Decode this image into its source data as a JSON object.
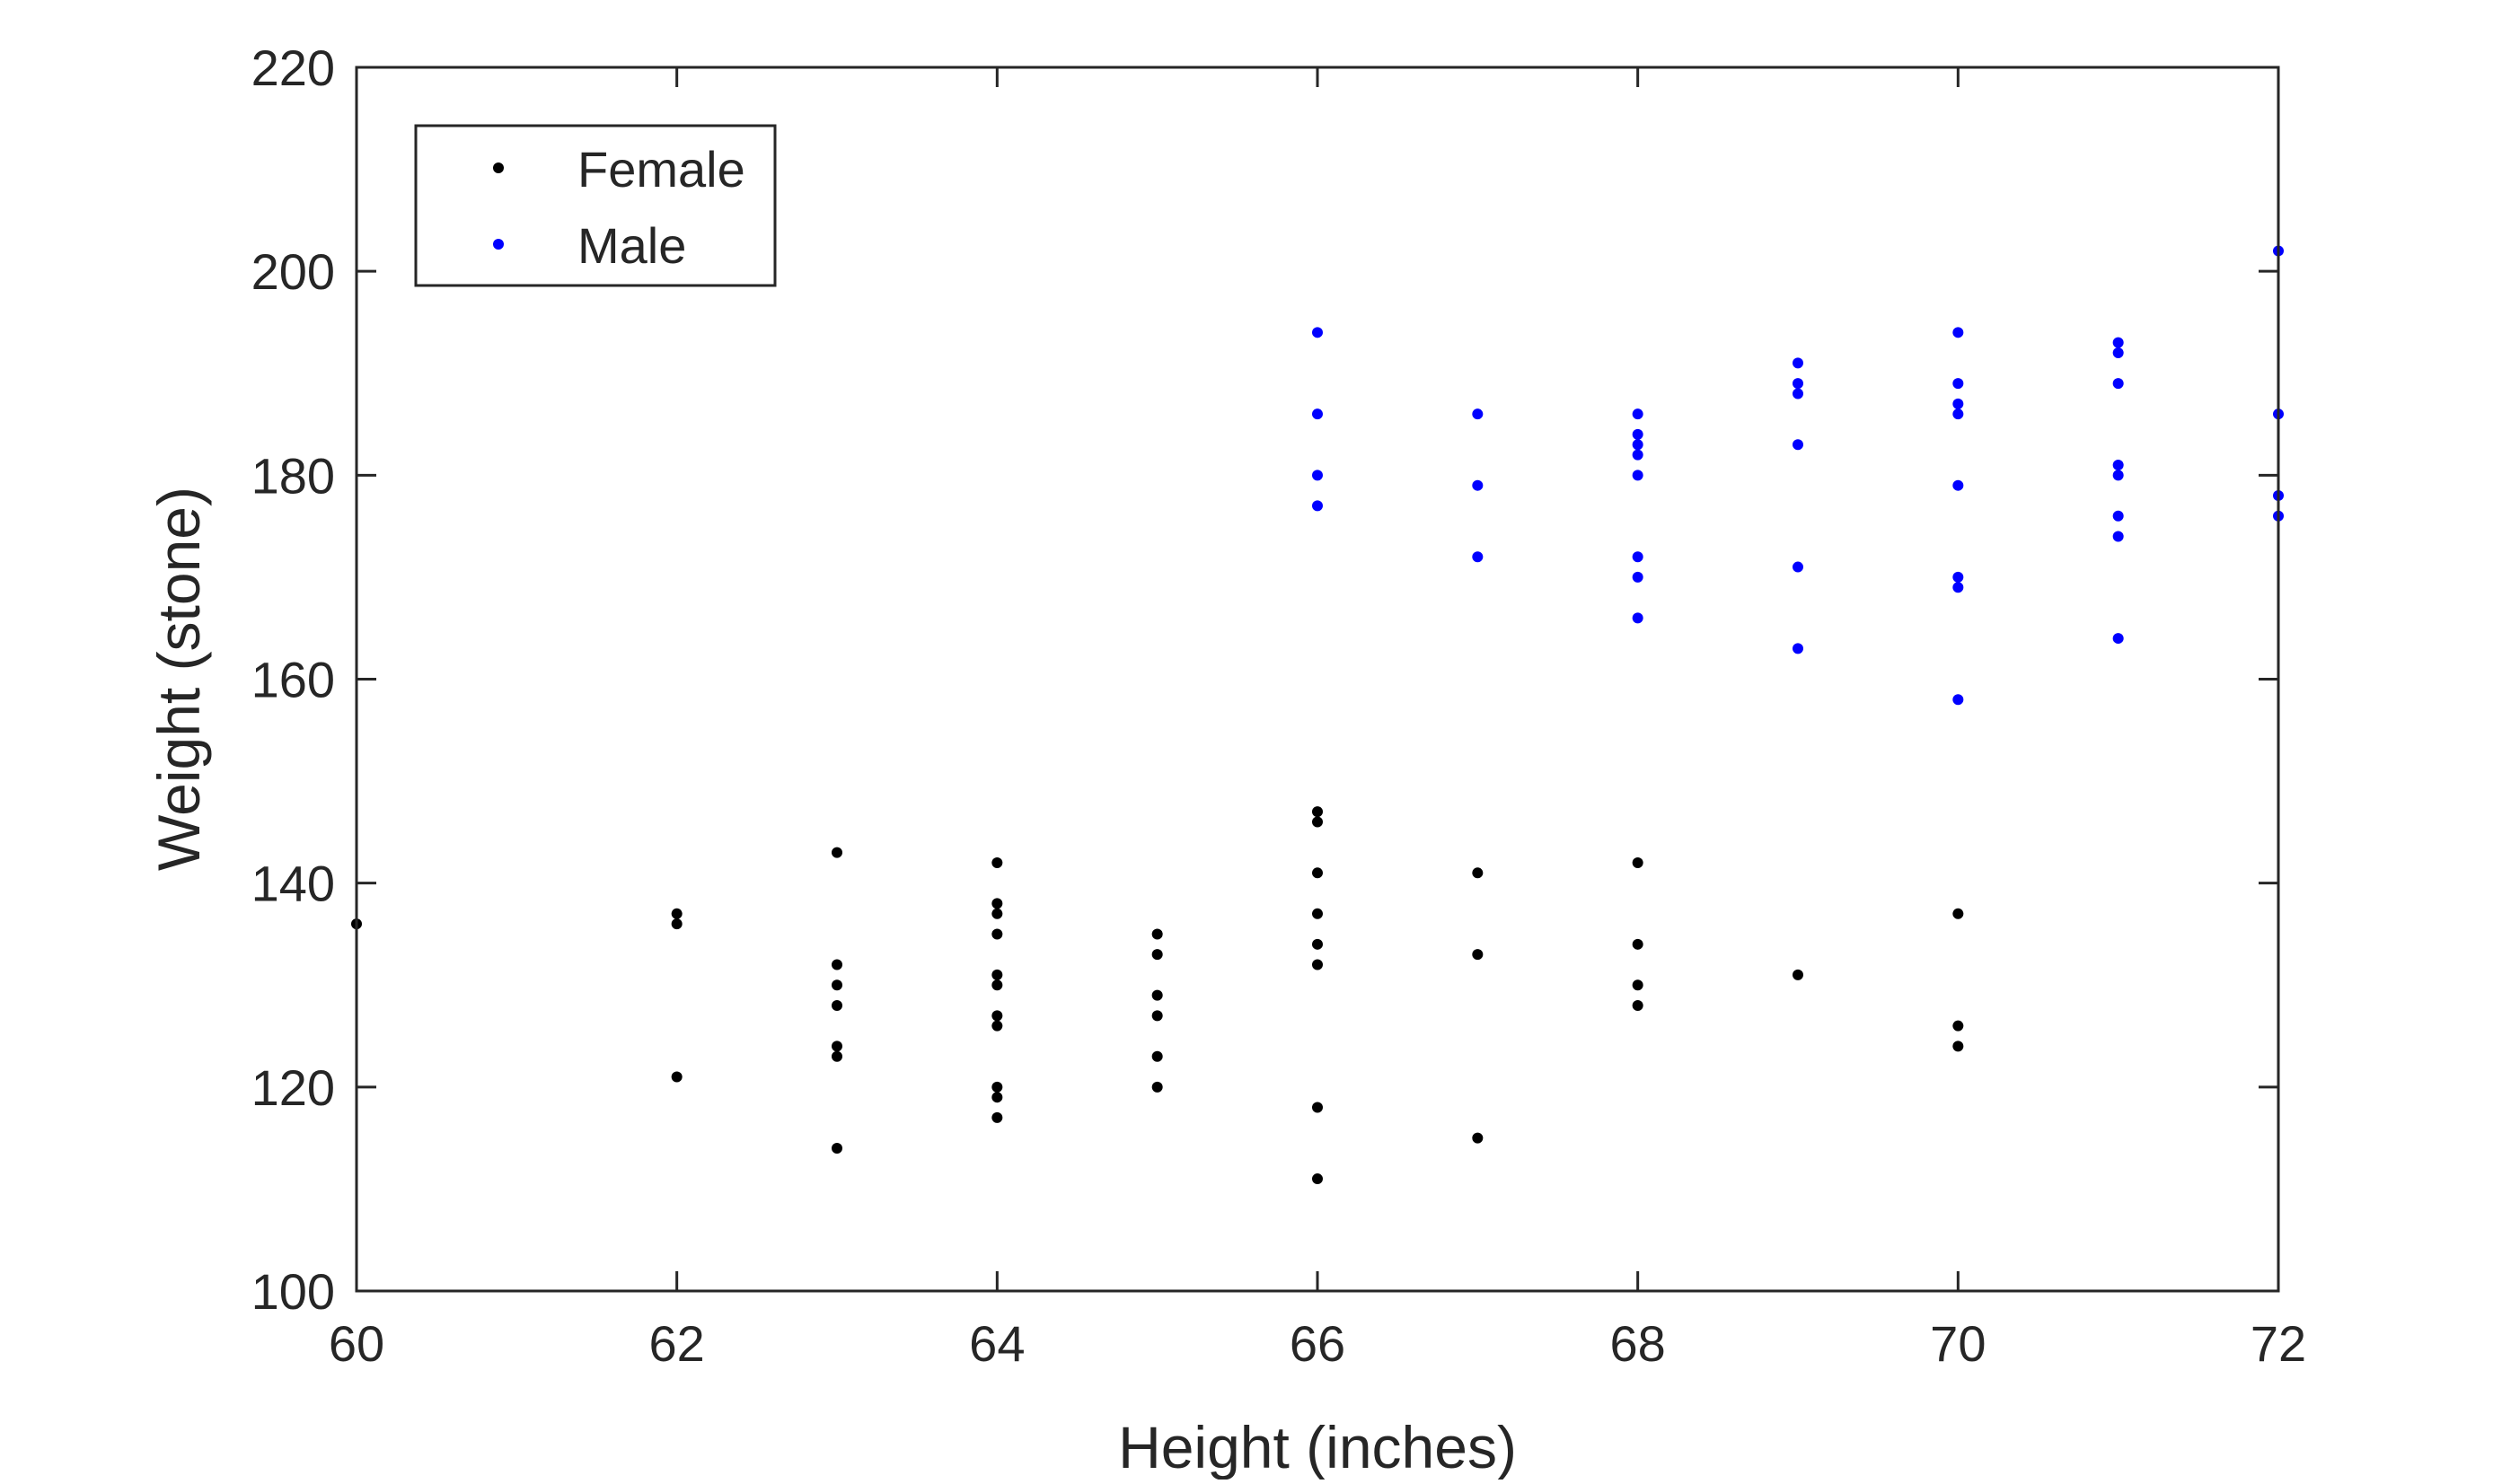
{
  "chart_data": {
    "type": "scatter",
    "title": "",
    "xlabel": "Height (inches)",
    "ylabel": "Weight (stone)",
    "xlim": [
      60,
      72
    ],
    "ylim": [
      100,
      220
    ],
    "xticks": [
      60,
      62,
      64,
      66,
      68,
      70,
      72
    ],
    "yticks": [
      100,
      120,
      140,
      160,
      180,
      200,
      220
    ],
    "xtick_labels": [
      "60",
      "62",
      "64",
      "66",
      "68",
      "70",
      "72"
    ],
    "ytick_labels": [
      "100",
      "120",
      "140",
      "160",
      "180",
      "200",
      "220"
    ],
    "grid": false,
    "legend_position": "top-left",
    "series": [
      {
        "name": "Female",
        "color": "#000000",
        "points": [
          [
            60,
            136
          ],
          [
            62,
            137
          ],
          [
            62,
            136
          ],
          [
            62,
            121
          ],
          [
            63,
            143
          ],
          [
            63,
            132
          ],
          [
            63,
            130
          ],
          [
            63,
            128
          ],
          [
            63,
            124
          ],
          [
            63,
            123
          ],
          [
            63,
            114
          ],
          [
            64,
            142
          ],
          [
            64,
            138
          ],
          [
            64,
            137
          ],
          [
            64,
            135
          ],
          [
            64,
            131
          ],
          [
            64,
            130
          ],
          [
            64,
            127
          ],
          [
            64,
            126
          ],
          [
            64,
            120
          ],
          [
            64,
            119
          ],
          [
            64,
            117
          ],
          [
            65,
            135
          ],
          [
            65,
            133
          ],
          [
            65,
            129
          ],
          [
            65,
            127
          ],
          [
            65,
            123
          ],
          [
            65,
            120
          ],
          [
            66,
            147
          ],
          [
            66,
            146
          ],
          [
            66,
            141
          ],
          [
            66,
            137
          ],
          [
            66,
            134
          ],
          [
            66,
            132
          ],
          [
            66,
            118
          ],
          [
            66,
            111
          ],
          [
            67,
            141
          ],
          [
            67,
            133
          ],
          [
            67,
            115
          ],
          [
            68,
            142
          ],
          [
            68,
            134
          ],
          [
            68,
            130
          ],
          [
            68,
            128
          ],
          [
            69,
            131
          ],
          [
            70,
            137
          ],
          [
            70,
            126
          ],
          [
            70,
            124
          ]
        ]
      },
      {
        "name": "Male",
        "color": "#0000ff",
        "points": [
          [
            66,
            194
          ],
          [
            66,
            186
          ],
          [
            66,
            180
          ],
          [
            66,
            177
          ],
          [
            67,
            186
          ],
          [
            67,
            179
          ],
          [
            67,
            172
          ],
          [
            68,
            186
          ],
          [
            68,
            184
          ],
          [
            68,
            183
          ],
          [
            68,
            182
          ],
          [
            68,
            180
          ],
          [
            68,
            172
          ],
          [
            68,
            170
          ],
          [
            68,
            166
          ],
          [
            69,
            191
          ],
          [
            69,
            189
          ],
          [
            69,
            188
          ],
          [
            69,
            183
          ],
          [
            69,
            171
          ],
          [
            69,
            163
          ],
          [
            70,
            194
          ],
          [
            70,
            189
          ],
          [
            70,
            187
          ],
          [
            70,
            186
          ],
          [
            70,
            179
          ],
          [
            70,
            170
          ],
          [
            70,
            169
          ],
          [
            70,
            158
          ],
          [
            71,
            193
          ],
          [
            71,
            192
          ],
          [
            71,
            189
          ],
          [
            71,
            181
          ],
          [
            71,
            180
          ],
          [
            71,
            176
          ],
          [
            71,
            174
          ],
          [
            71,
            164
          ],
          [
            72,
            202
          ],
          [
            72,
            186
          ],
          [
            72,
            178
          ],
          [
            72,
            176
          ]
        ]
      }
    ]
  }
}
